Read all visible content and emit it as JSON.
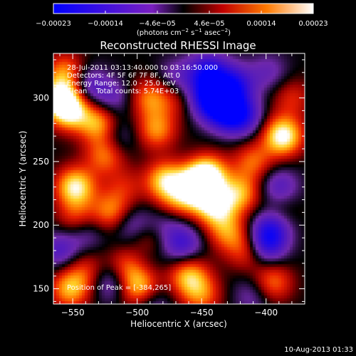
{
  "chart_data": {
    "type": "heatmap",
    "title": "Reconstructed RHESSI Image",
    "xlabel": "Heliocentric X (arcsec)",
    "ylabel": "Heliocentric Y (arcsec)",
    "xlim": [
      -565,
      -370
    ],
    "ylim": [
      138,
      335
    ],
    "xticks": [
      -550,
      -500,
      -450,
      -400
    ],
    "xtick_labels": [
      "−550",
      "−500",
      "−450",
      "−400"
    ],
    "yticks": [
      150,
      200,
      250,
      300
    ],
    "ytick_labels": [
      "150",
      "200",
      "250",
      "300"
    ],
    "colorbar": {
      "range": [
        -0.00023,
        0.00023
      ],
      "tick_labels": [
        "−0.00023",
        "−0.00014",
        "−4.6e−05",
        "4.6e−05",
        "0.00014",
        "0.00023"
      ],
      "units_parts": [
        "(photons cm",
        "−2",
        " s",
        "−1",
        " asec",
        "−2",
        ")"
      ]
    },
    "annotations": [
      "28-Jul-2011 03:13:40.000 to 03:16:50.000",
      "Detectors: 4F 5F 6F 7F 8F, Att 0",
      "Energy Range: 12.0 - 25.0 keV",
      "Clean    Total counts: 5.74E+03"
    ],
    "peak_label": "Position of Peak = [-384,265]",
    "peak": [
      -384,
      265
    ],
    "features": [
      [
        -559,
        300,
        0.9
      ],
      [
        -552,
        290,
        0.8
      ],
      [
        -555,
        320,
        0.6
      ],
      [
        -548,
        230,
        0.9
      ],
      [
        -547,
        205,
        0.45
      ],
      [
        -552,
        150,
        0.7
      ],
      [
        -540,
        165,
        0.35
      ],
      [
        -530,
        280,
        0.7
      ],
      [
        -525,
        255,
        0.55
      ],
      [
        -520,
        210,
        0.6
      ],
      [
        -510,
        230,
        0.3
      ],
      [
        -505,
        170,
        0.9
      ],
      [
        -498,
        150,
        0.8
      ],
      [
        -495,
        185,
        0.45
      ],
      [
        -490,
        300,
        0.55
      ],
      [
        -485,
        275,
        0.6
      ],
      [
        -478,
        235,
        0.8
      ],
      [
        -470,
        215,
        0.5
      ],
      [
        -455,
        230,
        0.95
      ],
      [
        -445,
        240,
        0.9
      ],
      [
        -440,
        215,
        0.85
      ],
      [
        -430,
        195,
        0.55
      ],
      [
        -420,
        225,
        0.65
      ],
      [
        -410,
        250,
        0.5
      ],
      [
        -415,
        180,
        0.45
      ],
      [
        -395,
        155,
        0.55
      ],
      [
        -387,
        270,
        1.0
      ],
      [
        -380,
        300,
        0.35
      ],
      [
        -390,
        210,
        0.3
      ],
      [
        -460,
        160,
        0.7
      ],
      [
        -450,
        145,
        0.5
      ],
      [
        -470,
        300,
        0.3
      ],
      [
        -540,
        310,
        -0.5
      ],
      [
        -560,
        180,
        -0.45
      ],
      [
        -540,
        195,
        -0.35
      ],
      [
        -520,
        300,
        -0.35
      ],
      [
        -515,
        270,
        -0.3
      ],
      [
        -505,
        200,
        -0.4
      ],
      [
        -500,
        175,
        -0.75
      ],
      [
        -475,
        205,
        -0.35
      ],
      [
        -465,
        185,
        -0.55
      ],
      [
        -470,
        315,
        -0.35
      ],
      [
        -445,
        300,
        -0.8
      ],
      [
        -445,
        320,
        -0.75
      ],
      [
        -432,
        290,
        -0.85
      ],
      [
        -425,
        310,
        -0.7
      ],
      [
        -418,
        285,
        -0.6
      ],
      [
        -400,
        185,
        -0.7
      ],
      [
        -395,
        200,
        -0.6
      ],
      [
        -390,
        230,
        -0.45
      ],
      [
        -410,
        145,
        -0.3
      ],
      [
        -490,
        140,
        -0.4
      ],
      [
        -520,
        155,
        -0.4
      ],
      [
        -398,
        320,
        -0.3
      ]
    ],
    "grid": false,
    "legend": "none"
  },
  "footer": {
    "date": "10-Aug-2013 01:33"
  }
}
